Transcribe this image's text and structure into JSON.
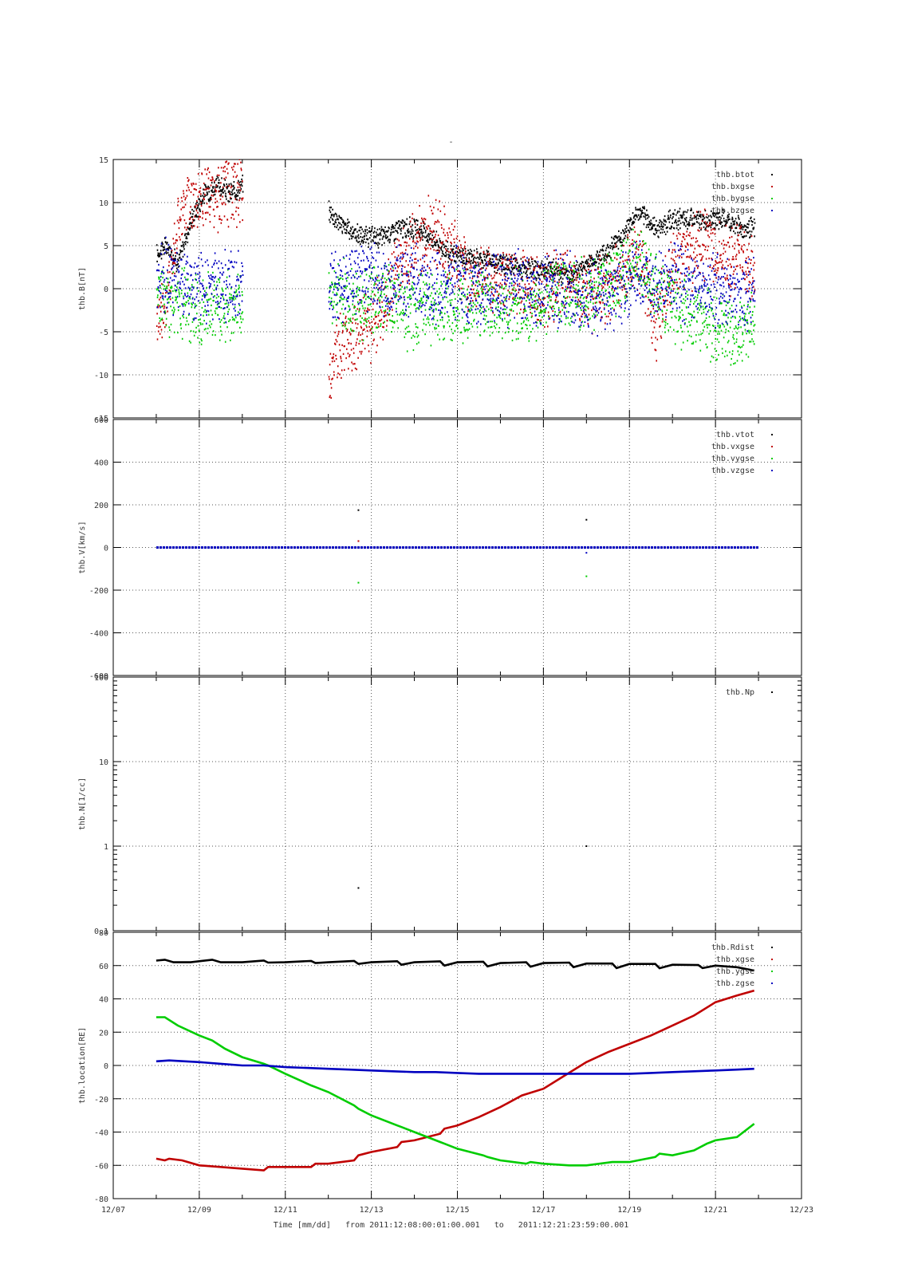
{
  "title": "-",
  "footer": {
    "xlabel": "Time [mm/dd]",
    "from_label": "from",
    "from": "2011:12:08:00:01:00.001",
    "to_label": "to",
    "to": "2011:12:21:23:59:00.001"
  },
  "colors": {
    "black": "#000000",
    "red": "#c00000",
    "green": "#00cc00",
    "blue": "#0000c0",
    "axis": "#000000",
    "grid": "#555555"
  },
  "chart_data": [
    {
      "type": "scatter",
      "ylabel": "thb.B[nT]",
      "ylim": [
        -15,
        15
      ],
      "yticks": [
        "15",
        "10",
        "5",
        "0",
        "-5",
        "-10",
        "-15"
      ],
      "grid": true,
      "legend_position": "top-right",
      "series": [
        {
          "name": "thb.btot",
          "color": "#000000",
          "segments": [
            {
              "x": [
                8.0,
                8.2,
                8.5,
                8.8,
                9.1,
                9.4,
                9.7,
                10.0
              ],
              "y": [
                4,
                5,
                3,
                8,
                11,
                12,
                11,
                12
              ]
            },
            {
              "x": [
                12.0,
                12.4,
                12.8,
                13.2,
                13.6,
                14.0,
                14.4,
                14.8,
                15.2,
                15.6,
                16.0,
                16.4,
                16.8,
                17.2,
                17.6,
                18.0,
                18.4,
                18.8,
                19.2,
                19.6,
                20.0,
                20.4,
                20.8,
                21.2,
                21.6,
                21.9
              ],
              "y": [
                9,
                7,
                6,
                6,
                7,
                7,
                6,
                4,
                3.5,
                3.5,
                3,
                2.5,
                2,
                2.5,
                1.5,
                3,
                4,
                6,
                9,
                7,
                8,
                8,
                8,
                8,
                7,
                7
              ]
            }
          ]
        },
        {
          "name": "thb.bxgse",
          "color": "#c00000",
          "segments": [
            {
              "x": [
                8.0,
                8.2,
                8.5,
                8.8,
                9.1,
                9.4,
                9.7,
                10.0
              ],
              "y": [
                -3,
                -2,
                8,
                10,
                11,
                10,
                12,
                11
              ]
            },
            {
              "x": [
                12.0,
                12.2,
                12.4,
                12.8,
                13.2,
                13.6,
                14.0,
                14.4,
                14.8,
                15.2,
                15.6,
                16.0,
                16.4,
                16.8,
                17.2,
                17.6,
                18.0,
                18.4,
                18.8,
                19.2,
                19.6,
                20.0,
                20.4,
                20.8,
                21.2,
                21.6,
                21.9
              ],
              "y": [
                -10,
                -7,
                -6,
                -5,
                -3,
                2,
                5,
                7,
                5,
                2,
                1,
                1,
                1,
                0,
                0,
                1,
                -1,
                0,
                2,
                4,
                -4,
                3,
                4,
                6,
                3,
                4,
                2
              ]
            }
          ]
        },
        {
          "name": "thb.bygse",
          "color": "#00cc00",
          "segments": [
            {
              "x": [
                8.0,
                8.2,
                8.5,
                8.8,
                9.1,
                9.4,
                9.7,
                10.0
              ],
              "y": [
                0,
                -1,
                -2,
                -2,
                -3,
                -2,
                -2,
                -2
              ]
            },
            {
              "x": [
                12.0,
                12.4,
                12.8,
                13.2,
                13.6,
                14.0,
                14.4,
                14.8,
                15.2,
                15.6,
                16.0,
                16.4,
                16.8,
                17.2,
                17.6,
                18.0,
                18.4,
                18.8,
                19.2,
                19.6,
                20.0,
                20.4,
                20.8,
                21.2,
                21.6,
                21.9
              ],
              "y": [
                0,
                -1,
                -2,
                -1,
                -2,
                -3,
                -2,
                -2,
                -2,
                -2,
                -2,
                -2,
                -2,
                -1,
                -1,
                -1,
                1,
                1,
                3,
                0,
                -2,
                -3,
                -4,
                -5,
                -5,
                -4
              ]
            }
          ]
        },
        {
          "name": "thb.bzgse",
          "color": "#0000c0",
          "segments": [
            {
              "x": [
                8.0,
                8.2,
                8.5,
                8.8,
                9.1,
                9.4,
                9.7,
                10.0
              ],
              "y": [
                1,
                2,
                1,
                0,
                0,
                0,
                0,
                1
              ]
            },
            {
              "x": [
                12.0,
                12.4,
                12.8,
                13.2,
                13.6,
                14.0,
                14.4,
                14.8,
                15.2,
                15.6,
                16.0,
                16.4,
                16.8,
                17.2,
                17.6,
                18.0,
                18.4,
                18.8,
                19.2,
                19.6,
                20.0,
                20.4,
                20.8,
                21.2,
                21.6,
                21.9
              ],
              "y": [
                1,
                0,
                2,
                0,
                1,
                1,
                0,
                1,
                0,
                0,
                0,
                0,
                0,
                0,
                0,
                -1,
                -1,
                0,
                2,
                0,
                1,
                0,
                0,
                0,
                -1,
                0
              ]
            }
          ]
        }
      ]
    },
    {
      "type": "scatter",
      "ylabel": "thb.V[km/s]",
      "ylim": [
        -600,
        600
      ],
      "yticks": [
        "600",
        "400",
        "200",
        "0",
        "-200",
        "-400",
        "-600"
      ],
      "grid": true,
      "legend_position": "top-right",
      "series": [
        {
          "name": "thb.vtot",
          "color": "#000000",
          "x": [
            8.0,
            22.0
          ],
          "y": [
            0,
            0
          ]
        },
        {
          "name": "thb.vxgse",
          "color": "#c00000",
          "x": [
            8.0,
            22.0
          ],
          "y": [
            0,
            0
          ]
        },
        {
          "name": "thb.vygse",
          "color": "#00cc00",
          "x": [
            8.0,
            22.0
          ],
          "y": [
            0,
            0
          ]
        },
        {
          "name": "thb.vzgse",
          "color": "#0000c0",
          "x": [
            8.0,
            22.0
          ],
          "y": [
            0,
            0
          ]
        }
      ],
      "outliers": [
        {
          "x": 12.7,
          "y": 175,
          "color": "#000000"
        },
        {
          "x": 12.7,
          "y": 30,
          "color": "#c00000"
        },
        {
          "x": 12.7,
          "y": -165,
          "color": "#00cc00"
        },
        {
          "x": 18.0,
          "y": 130,
          "color": "#000000"
        },
        {
          "x": 18.0,
          "y": -25,
          "color": "#0000c0"
        },
        {
          "x": 18.0,
          "y": -135,
          "color": "#00cc00"
        }
      ]
    },
    {
      "type": "scatter",
      "ylabel": "thb.N[1/cc]",
      "yscale": "log",
      "ylim": [
        0.1,
        100
      ],
      "yticks": [
        "100",
        "10",
        "1",
        "0.1"
      ],
      "grid": true,
      "legend_position": "top-right",
      "series": [
        {
          "name": "thb.Np",
          "color": "#000000",
          "x": [
            12.7,
            18.0
          ],
          "y": [
            0.32,
            1.0
          ]
        }
      ]
    },
    {
      "type": "line",
      "ylabel": "thb.location[RE]",
      "ylim": [
        -80,
        80
      ],
      "yticks": [
        "80",
        "60",
        "40",
        "20",
        "0",
        "-20",
        "-40",
        "-60",
        "-80"
      ],
      "xticks": [
        "12/07",
        "12/09",
        "12/11",
        "12/13",
        "12/15",
        "12/17",
        "12/19",
        "12/21",
        "12/23"
      ],
      "xlim": [
        "12/07",
        "12/23"
      ],
      "grid": true,
      "legend_position": "top-right",
      "series": [
        {
          "name": "thb.Rdist",
          "color": "#000000",
          "x": [
            8.0,
            8.2,
            8.4,
            8.8,
            9.3,
            9.5,
            10.0,
            10.5,
            10.6,
            11.0,
            11.6,
            11.7,
            12.0,
            12.6,
            12.7,
            13.0,
            13.6,
            13.7,
            14.0,
            14.6,
            14.7,
            15.0,
            15.6,
            15.7,
            16.0,
            16.6,
            16.7,
            17.0,
            17.6,
            17.7,
            18.0,
            18.6,
            18.7,
            19.0,
            19.6,
            19.7,
            20.0,
            20.6,
            20.7,
            21.0,
            21.5,
            21.9
          ],
          "y": [
            63,
            63.5,
            62,
            62,
            63.5,
            62,
            62,
            63,
            61.8,
            62,
            62.8,
            61.5,
            62,
            62.8,
            61,
            62,
            62.6,
            60.5,
            62,
            62.5,
            60,
            62,
            62.3,
            59.5,
            61.5,
            62,
            59.3,
            61.5,
            61.8,
            59,
            61.2,
            61.2,
            58.5,
            61,
            61,
            58.4,
            60.5,
            60.3,
            58.5,
            60,
            59,
            57
          ]
        },
        {
          "name": "thb.xgse",
          "color": "#c00000",
          "x": [
            8.0,
            8.2,
            8.3,
            8.6,
            9.0,
            9.5,
            10.0,
            10.5,
            10.6,
            11.0,
            11.6,
            11.7,
            12.0,
            12.6,
            12.7,
            13.0,
            13.6,
            13.7,
            14.0,
            14.6,
            14.7,
            15.0,
            15.5,
            16.0,
            16.5,
            17.0,
            17.5,
            18.0,
            18.5,
            19.0,
            19.5,
            20.0,
            20.5,
            21.0,
            21.5,
            21.9
          ],
          "y": [
            -56,
            -57,
            -56,
            -57,
            -60,
            -61,
            -62,
            -63,
            -61,
            -61,
            -61,
            -59,
            -59,
            -57,
            -54,
            -52,
            -49,
            -46,
            -45,
            -41,
            -38,
            -36,
            -31,
            -25,
            -18,
            -14,
            -6,
            2,
            8,
            13,
            18,
            24,
            30,
            38,
            42,
            45
          ]
        },
        {
          "name": "thb.ygse",
          "color": "#00cc00",
          "x": [
            8.0,
            8.2,
            8.5,
            9.0,
            9.3,
            9.6,
            10.0,
            10.5,
            10.6,
            11.0,
            11.6,
            11.7,
            12.0,
            12.6,
            12.7,
            13.0,
            13.6,
            13.7,
            14.0,
            14.6,
            14.7,
            15.0,
            15.6,
            15.7,
            16.0,
            16.6,
            16.7,
            17.0,
            17.6,
            17.7,
            18.0,
            18.6,
            18.7,
            19.0,
            19.6,
            19.7,
            20.0,
            20.5,
            20.8,
            21.0,
            21.5,
            21.9
          ],
          "y": [
            29,
            29,
            24,
            18,
            15,
            10,
            5,
            1,
            0,
            -5,
            -12,
            -13,
            -16,
            -24,
            -26,
            -30,
            -36,
            -37,
            -40,
            -46,
            -47,
            -50,
            -54,
            -55,
            -57,
            -59,
            -58,
            -59,
            -60,
            -60,
            -60,
            -58,
            -58,
            -58,
            -55,
            -53,
            -54,
            -51,
            -47,
            -45,
            -43,
            -35
          ]
        },
        {
          "name": "thb.zgse",
          "color": "#0000c0",
          "x": [
            8.0,
            8.3,
            9.0,
            9.5,
            10.0,
            10.5,
            11.0,
            11.5,
            12.0,
            12.5,
            13.0,
            13.5,
            14.0,
            14.5,
            15.0,
            15.5,
            16.0,
            16.5,
            17.0,
            17.5,
            18.0,
            18.5,
            19.0,
            19.5,
            20.0,
            20.5,
            21.0,
            21.5,
            21.9
          ],
          "y": [
            2.5,
            3,
            2,
            1,
            0,
            0,
            -1,
            -1.5,
            -2,
            -2.5,
            -3,
            -3.5,
            -4,
            -4,
            -4.5,
            -5,
            -5,
            -5,
            -5,
            -5,
            -5,
            -5,
            -5,
            -4.5,
            -4,
            -3.5,
            -3,
            -2.5,
            -2
          ]
        }
      ]
    }
  ]
}
